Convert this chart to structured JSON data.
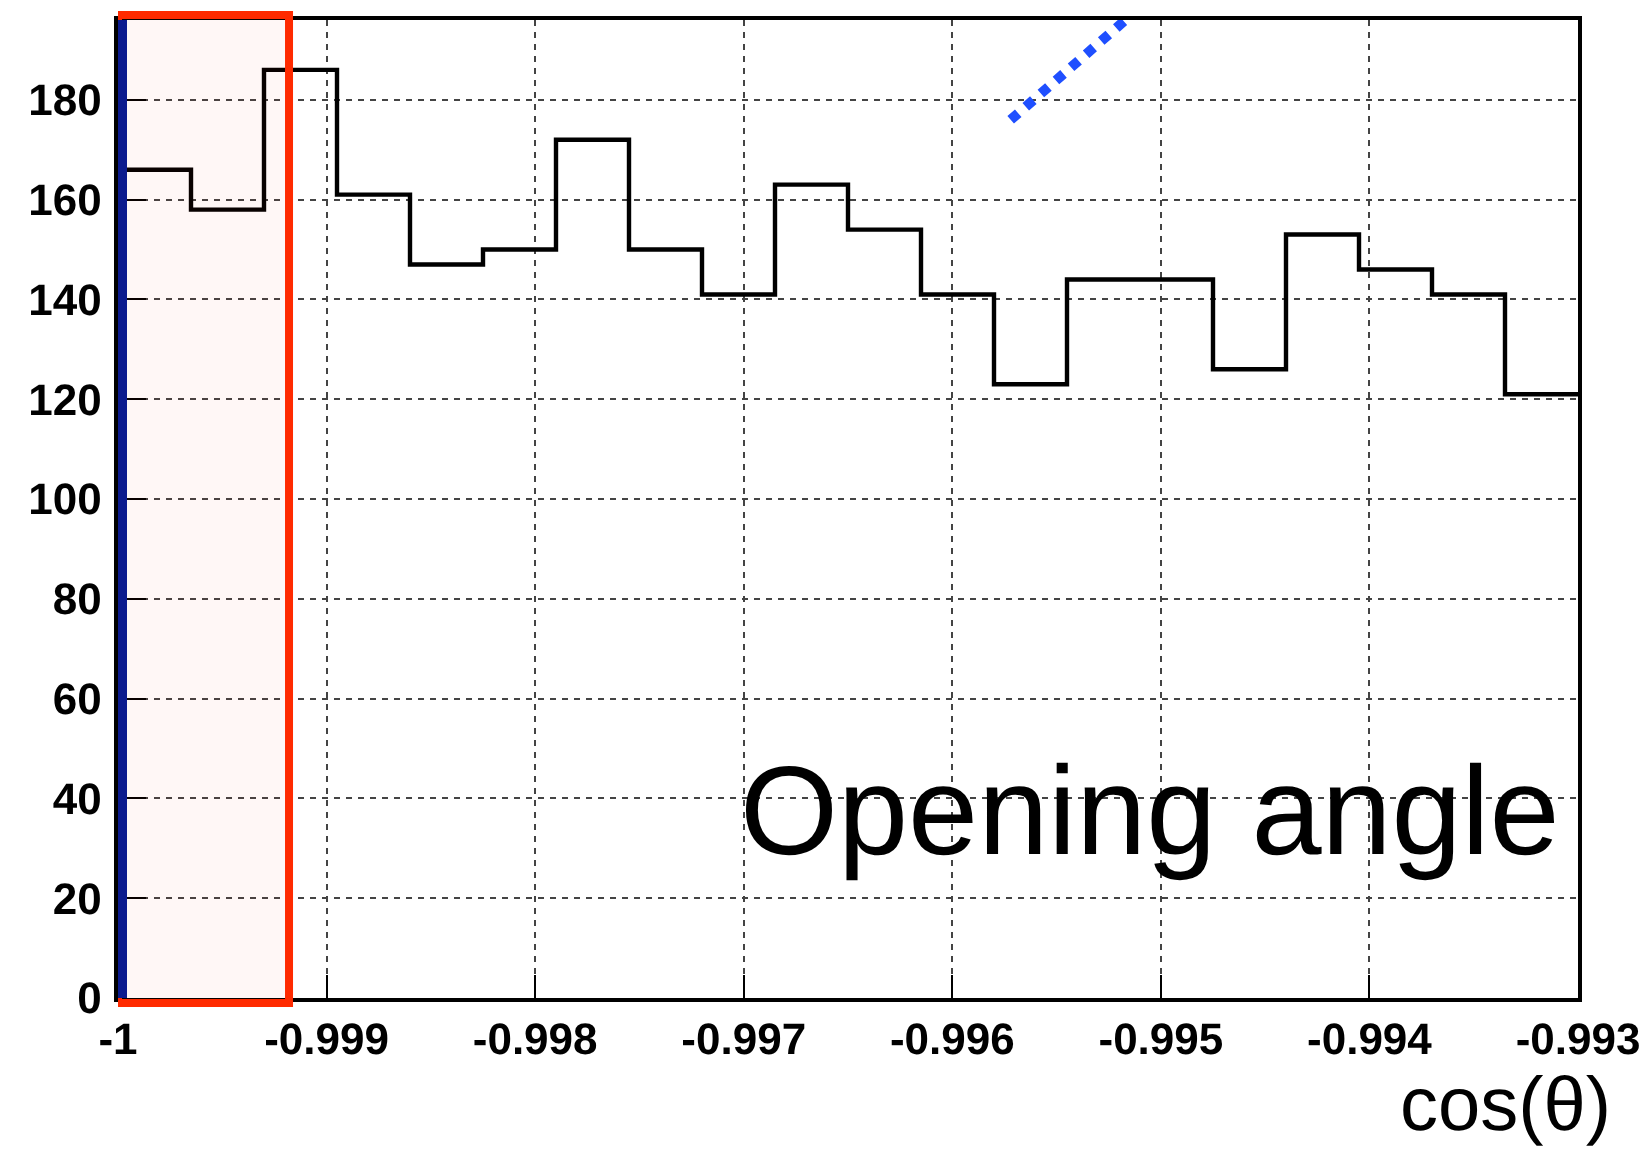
{
  "chart_data": {
    "type": "histogram",
    "xlabel": "cos(θ)",
    "annotations": [
      "Opening angle"
    ],
    "bins": [
      -1,
      -0.99965,
      -0.9993,
      -0.99895,
      -0.9986,
      -0.99825,
      -0.9979,
      -0.99755,
      -0.9972,
      -0.99685,
      -0.9965,
      -0.99615,
      -0.9958,
      -0.99545,
      -0.9951,
      -0.99475,
      -0.9944,
      -0.99405,
      -0.9937,
      -0.99335,
      -0.993
    ],
    "series": [
      {
        "type": "histogram",
        "color": "#000000",
        "values": [
          166,
          158,
          186,
          161,
          147,
          150,
          172,
          150,
          141,
          163,
          154,
          141,
          123,
          144,
          144,
          126,
          153,
          146,
          141,
          121
        ]
      },
      {
        "type": "line",
        "x": [
          -0.99572,
          -0.99517
        ],
        "values": [
          176,
          196
        ],
        "color": "#1f4fff",
        "line_style": "dotted"
      }
    ],
    "xlim": [
      -1,
      -0.993
    ],
    "xticks": [
      -1,
      -0.999,
      -0.998,
      -0.997,
      -0.996,
      -0.995,
      -0.994,
      -0.993
    ],
    "ylim": [
      0,
      196
    ],
    "yticks": [
      0,
      20,
      40,
      60,
      80,
      100,
      120,
      140,
      160,
      180
    ],
    "grid": true,
    "ref_lines": [
      {
        "axis": "x",
        "value": -1,
        "color": "#0b1a8e"
      }
    ],
    "bands": [
      {
        "axis": "x",
        "from": -1,
        "to": -0.99918,
        "color": "#ff2a00"
      }
    ]
  }
}
